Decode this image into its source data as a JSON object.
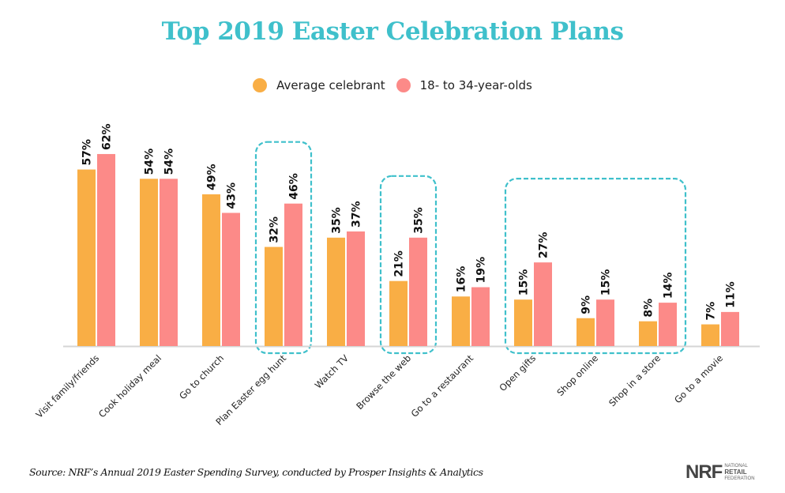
{
  "chart_data": {
    "type": "bar",
    "title": "Top 2019 Easter Celebration Plans",
    "xlabel": "",
    "ylabel": "",
    "ylim": [
      0,
      65
    ],
    "grid": false,
    "legend_position": "top-center",
    "categories": [
      "Visit family/friends",
      "Cook holiday meal",
      "Go to church",
      "Plan Easter egg hunt",
      "Watch TV",
      "Browse the web",
      "Go to a restaurant",
      "Open gifts",
      "Shop online",
      "Shop in a store",
      "Go to a movie"
    ],
    "series": [
      {
        "name": "Average celebrant",
        "color": "#f9ae45",
        "values": [
          57,
          54,
          49,
          32,
          35,
          21,
          16,
          15,
          9,
          8,
          7
        ]
      },
      {
        "name": "18- to 34-year-olds",
        "color": "#fc8a88",
        "values": [
          62,
          54,
          43,
          46,
          37,
          35,
          19,
          27,
          15,
          14,
          11
        ]
      }
    ],
    "value_suffix": "%",
    "highlight_groups": [
      [
        "Plan Easter egg hunt"
      ],
      [
        "Browse the web"
      ],
      [
        "Open gifts",
        "Shop online",
        "Shop in a store"
      ]
    ],
    "highlight_color": "#3fc0cb"
  },
  "source": "Source: NRF’s Annual 2019 Easter Spending Survey, conducted by Prosper Insights & Analytics",
  "logo": {
    "main": "NRF",
    "line1": "NATIONAL",
    "line2": "RETAIL",
    "line3": "FEDERATION"
  }
}
